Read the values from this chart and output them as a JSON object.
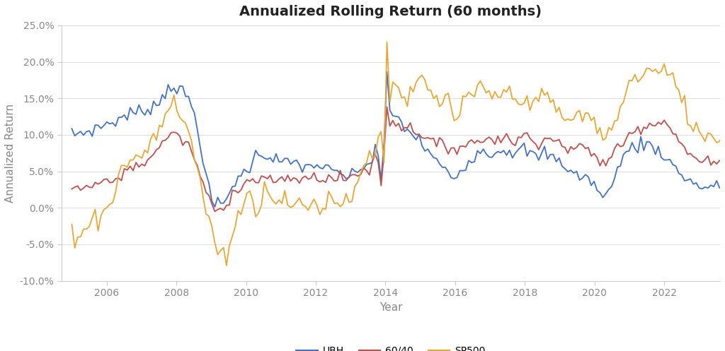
{
  "title": "Annualized Rolling Return (60 months)",
  "xlabel": "Year",
  "ylabel": "Annualized Return",
  "ylim": [
    -0.1,
    0.25
  ],
  "yticks": [
    -0.1,
    -0.05,
    0.0,
    0.05,
    0.1,
    0.15,
    0.2,
    0.25
  ],
  "ytick_labels": [
    "-10.0%",
    "-5.0%",
    "0.0%",
    "5.0%",
    "10.0%",
    "15.0%",
    "20.0%",
    "25.0%"
  ],
  "xlim": [
    2004.7,
    2023.6
  ],
  "xticks": [
    2006,
    2008,
    2010,
    2012,
    2014,
    2016,
    2018,
    2020,
    2022
  ],
  "line_colors": {
    "UBH": "#4472C4",
    "6040": "#C0504D",
    "SP500": "#E8A838"
  },
  "line_width": 1.3,
  "bg_color": "#FFFFFF",
  "legend_labels": [
    "UBH",
    "60/40",
    "SP500"
  ],
  "title_fontsize": 14,
  "axis_fontsize": 11,
  "tick_fontsize": 10,
  "grid_color": "#D8D8D8",
  "tick_color": "#888888",
  "spine_color": "#CCCCCC"
}
